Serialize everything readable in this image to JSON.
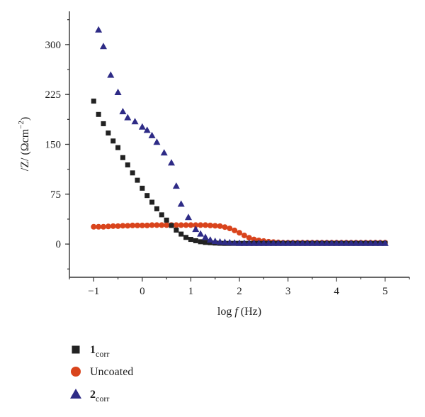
{
  "chart_data": {
    "type": "scatter",
    "xlabel": {
      "prefix": "log ",
      "var": "f",
      "suffix": " (Hz)"
    },
    "ylabel": {
      "main": "/Z/ (Ωcm",
      "sup": "−2",
      "close": ")"
    },
    "xlim": [
      -1.5,
      5.5
    ],
    "ylim": [
      -50,
      350
    ],
    "xticks": [
      -1,
      0,
      1,
      2,
      3,
      4,
      5
    ],
    "xtick_labels": [
      "−1",
      "0",
      "1",
      "2",
      "3",
      "4",
      "5"
    ],
    "yticks": [
      0,
      75,
      150,
      225,
      300
    ],
    "ytick_labels": [
      "0",
      "75",
      "150",
      "225",
      "300"
    ],
    "legend_position": "bottom-left",
    "series": [
      {
        "name": "1corr",
        "label_main": "1",
        "label_sub": "corr",
        "marker": "square",
        "color": "#222222",
        "x": [
          -1.0,
          -0.9,
          -0.8,
          -0.7,
          -0.6,
          -0.5,
          -0.4,
          -0.3,
          -0.2,
          -0.1,
          0.0,
          0.1,
          0.2,
          0.3,
          0.4,
          0.5,
          0.6,
          0.7,
          0.8,
          0.9,
          1.0,
          1.1,
          1.2,
          1.3,
          1.4,
          1.5,
          1.6,
          1.7,
          1.8,
          1.9,
          2.0,
          2.1,
          2.2,
          2.3,
          2.4,
          2.5,
          2.6,
          2.7,
          2.8,
          2.9,
          3.0,
          3.1,
          3.2,
          3.3,
          3.4,
          3.5,
          3.6,
          3.7,
          3.8,
          3.9,
          4.0,
          4.1,
          4.2,
          4.3,
          4.4,
          4.5,
          4.6,
          4.7,
          4.8,
          4.9,
          5.0
        ],
        "y": [
          215,
          195,
          181,
          167,
          155,
          145,
          130,
          119,
          107,
          96,
          84,
          73,
          63,
          53,
          44,
          36,
          28,
          21,
          15,
          10,
          7,
          5,
          3.5,
          2.5,
          2,
          1.5,
          1.2,
          1,
          1,
          1,
          1,
          1,
          1,
          1,
          1,
          1,
          1,
          1,
          1,
          1,
          1,
          1,
          1,
          1,
          1,
          1,
          1,
          1,
          1,
          1,
          1,
          1,
          1,
          1,
          1,
          1,
          1,
          1,
          1,
          1,
          1
        ]
      },
      {
        "name": "Uncoated",
        "label_main": "Uncoated",
        "label_sub": "",
        "marker": "circle",
        "color": "#d9441c",
        "x": [
          -1.0,
          -0.9,
          -0.8,
          -0.7,
          -0.6,
          -0.5,
          -0.4,
          -0.3,
          -0.2,
          -0.1,
          0.0,
          0.1,
          0.2,
          0.3,
          0.4,
          0.5,
          0.6,
          0.7,
          0.8,
          0.9,
          1.0,
          1.1,
          1.2,
          1.3,
          1.4,
          1.5,
          1.6,
          1.7,
          1.8,
          1.9,
          2.0,
          2.1,
          2.2,
          2.3,
          2.4,
          2.5,
          2.6,
          2.7,
          2.8,
          2.9,
          3.0,
          3.1,
          3.2,
          3.3,
          3.4,
          3.5,
          3.6,
          3.7,
          3.8,
          3.9,
          4.0,
          4.1,
          4.2,
          4.3,
          4.4,
          4.5,
          4.6,
          4.7,
          4.8,
          4.9,
          5.0
        ],
        "y": [
          26,
          26,
          26,
          26.5,
          27,
          27,
          27.5,
          27.5,
          28,
          28,
          28,
          28,
          28.5,
          28.5,
          28.5,
          28.5,
          28.5,
          28.5,
          28.5,
          28.5,
          28.5,
          28.5,
          28.5,
          28.5,
          28,
          27.5,
          27,
          25.5,
          23.5,
          20.5,
          17,
          13,
          9.5,
          7,
          5.5,
          4.5,
          3.5,
          3,
          2.5,
          2,
          2,
          2,
          2,
          2,
          2,
          2,
          2,
          2,
          2,
          2,
          2,
          2,
          2,
          2,
          2,
          2,
          2,
          2,
          2,
          2,
          2
        ]
      },
      {
        "name": "2corr",
        "label_main": "2",
        "label_sub": "corr",
        "marker": "triangle",
        "color": "#2e2b86",
        "x": [
          -0.9,
          -0.8,
          -0.65,
          -0.5,
          -0.4,
          -0.3,
          -0.15,
          0.0,
          0.1,
          0.2,
          0.3,
          0.45,
          0.6,
          0.7,
          0.8,
          0.95,
          1.1,
          1.2,
          1.3,
          1.4,
          1.5,
          1.6,
          1.7,
          1.8,
          1.9,
          2.0,
          2.1,
          2.2,
          2.3,
          2.4,
          2.5,
          2.6,
          2.7,
          2.8,
          2.9,
          3.0,
          3.1,
          3.2,
          3.3,
          3.4,
          3.5,
          3.6,
          3.7,
          3.8,
          3.9,
          4.0,
          4.1,
          4.2,
          4.3,
          4.4,
          4.5,
          4.6,
          4.7,
          4.8,
          4.9,
          5.0
        ],
        "y": [
          322,
          297,
          254,
          228,
          199,
          190,
          184,
          176,
          171,
          163,
          153,
          137,
          122,
          87,
          60,
          40,
          22,
          15,
          10,
          6,
          4,
          3,
          2.5,
          2,
          1.5,
          1,
          1,
          1,
          1,
          1,
          1,
          1,
          1,
          1,
          1,
          1,
          1,
          1,
          1,
          1,
          1,
          1,
          1,
          1,
          1,
          1,
          1,
          1,
          1,
          1,
          1,
          1,
          1,
          1,
          1,
          1
        ]
      }
    ]
  }
}
